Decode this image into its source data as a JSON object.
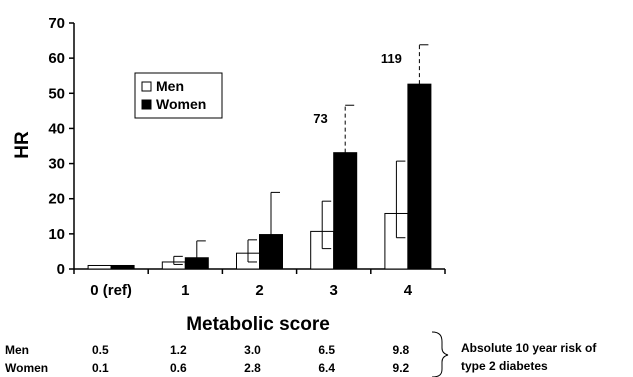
{
  "chart_data": {
    "type": "bar",
    "ylabel": "HR",
    "xlabel": "Metabolic score",
    "ylim": [
      0,
      70
    ],
    "yticks": [
      "0",
      "10",
      "20",
      "30",
      "40",
      "50",
      "60",
      "70"
    ],
    "categories": [
      "0 (ref)",
      "1",
      "2",
      "3",
      "4"
    ],
    "series": [
      {
        "name": "Men",
        "color": "#ffffff",
        "values": [
          1,
          2,
          4.5,
          10.7,
          15.8
        ],
        "err_low": [
          1,
          1.3,
          2,
          5.8,
          8.9
        ],
        "err_high": [
          1,
          3.6,
          8.3,
          19.3,
          30.7
        ]
      },
      {
        "name": "Women",
        "color": "#000000",
        "values": [
          1,
          3.2,
          9.8,
          33.1,
          52.6
        ],
        "err_low": [
          1,
          3.2,
          9.8,
          33.1,
          52.6
        ],
        "err_high": [
          1,
          8,
          21.8,
          46.6,
          63.8
        ]
      }
    ],
    "annotations": [
      {
        "category": "3",
        "text": "73"
      },
      {
        "category": "4",
        "text": "119"
      }
    ],
    "legend_position": "top-left",
    "grid": false
  },
  "risk_table": {
    "rows": [
      {
        "label": "Men",
        "values": [
          "0.5",
          "1.2",
          "3.0",
          "6.5",
          "9.8"
        ]
      },
      {
        "label": "Women",
        "values": [
          "0.1",
          "0.6",
          "2.8",
          "6.4",
          "9.2"
        ]
      }
    ],
    "note_line1": "Absolute 10 year risk of",
    "note_line2": "type 2 diabetes"
  }
}
